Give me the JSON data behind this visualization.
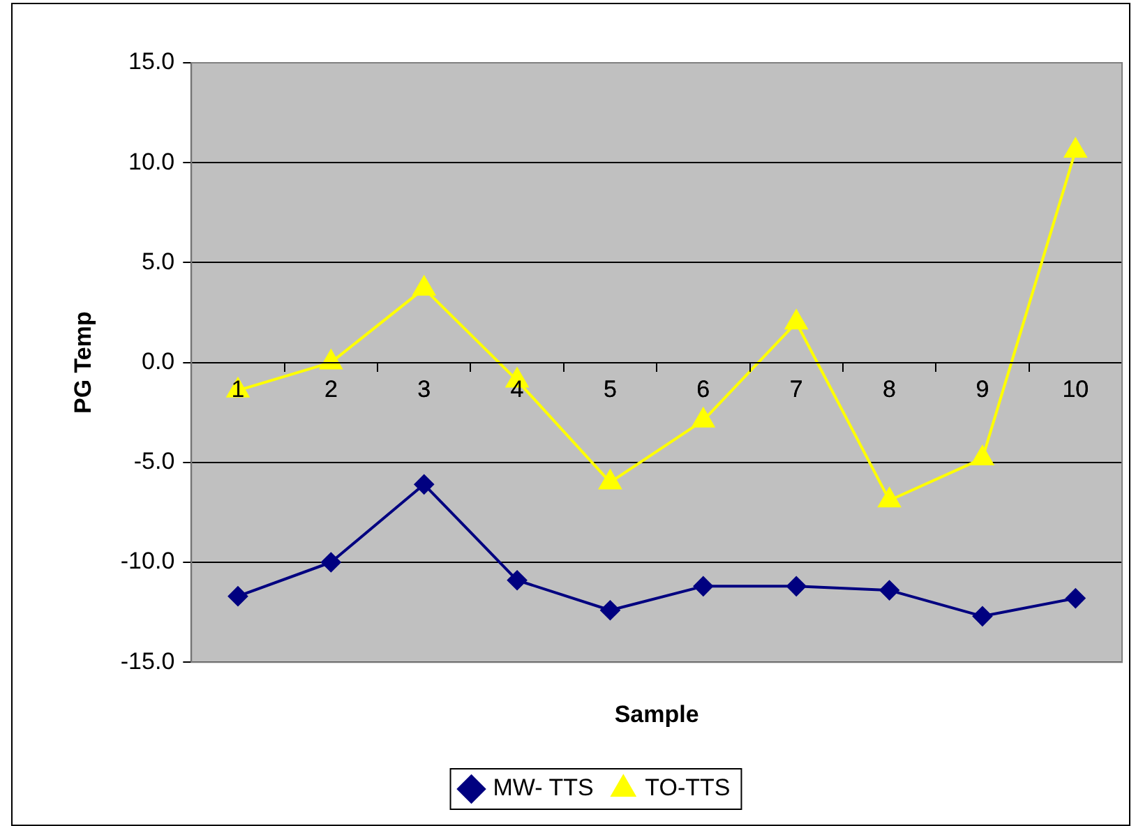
{
  "chart_data": {
    "type": "line",
    "xlabel": "Sample",
    "ylabel": "PG Temp",
    "categories": [
      "1",
      "2",
      "3",
      "4",
      "5",
      "6",
      "7",
      "8",
      "9",
      "10"
    ],
    "series": [
      {
        "name": "MW- TTS",
        "color": "#000080",
        "marker": "diamond",
        "values": [
          -11.7,
          -10.0,
          -6.1,
          -10.9,
          -12.4,
          -11.2,
          -11.2,
          -11.4,
          -12.7,
          -11.8
        ]
      },
      {
        "name": "TO-TTS",
        "color": "#ffff00",
        "marker": "triangle",
        "values": [
          -1.4,
          0.0,
          3.7,
          -0.9,
          -6.0,
          -2.9,
          2.0,
          -6.9,
          -4.8,
          10.6
        ]
      }
    ],
    "ylim": [
      -15,
      15
    ],
    "yticks": [
      {
        "value": -15,
        "label": "-15.0"
      },
      {
        "value": -10,
        "label": "-10.0"
      },
      {
        "value": -5,
        "label": "-5.0"
      },
      {
        "value": 0,
        "label": "0.0"
      },
      {
        "value": 5,
        "label": "5.0"
      },
      {
        "value": 10,
        "label": "10.0"
      },
      {
        "value": 15,
        "label": "15.0"
      }
    ],
    "grid": "y",
    "legend": "bottom"
  }
}
